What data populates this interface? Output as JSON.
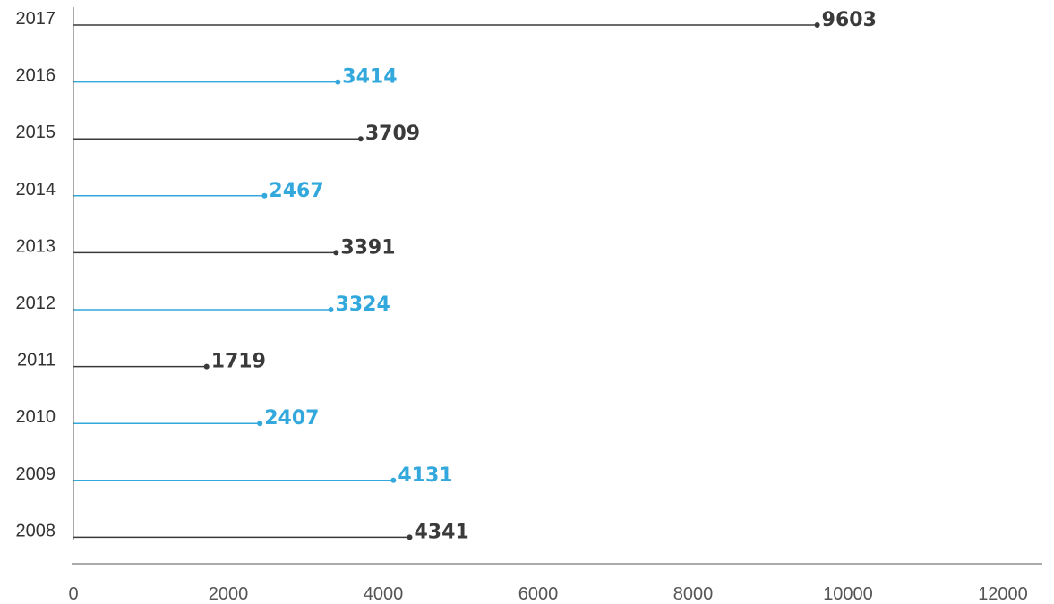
{
  "chart_data": {
    "type": "bar",
    "orientation": "horizontal",
    "style": "lollipop",
    "categories": [
      "2017",
      "2016",
      "2015",
      "2014",
      "2013",
      "2012",
      "2011",
      "2010",
      "2009",
      "2008"
    ],
    "values": [
      9603,
      3414,
      3709,
      2467,
      3391,
      3324,
      1719,
      2407,
      4131,
      4341
    ],
    "xticks": [
      "0",
      "2000",
      "4000",
      "6000",
      "8000",
      "10000",
      "12000"
    ],
    "xlim": [
      0,
      12000
    ],
    "title": "",
    "xlabel": "",
    "ylabel": "",
    "grid": false,
    "colors": {
      "dark": "#3a3a3a",
      "blue": "#33a8dc",
      "axis": "#555555"
    },
    "category_colors": [
      "dark",
      "blue",
      "dark",
      "blue",
      "dark",
      "blue",
      "dark",
      "blue",
      "blue",
      "dark"
    ]
  }
}
